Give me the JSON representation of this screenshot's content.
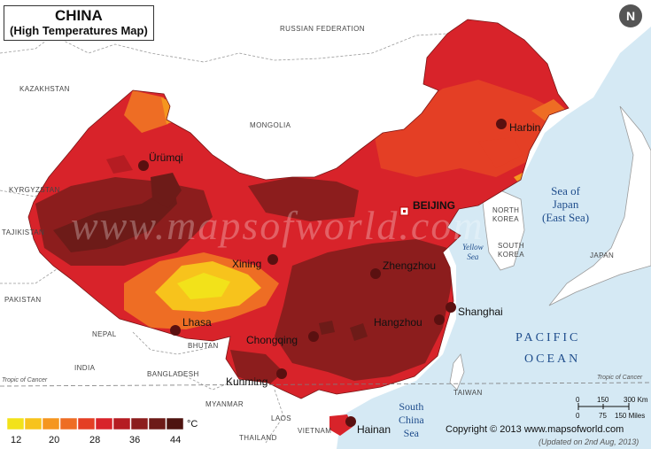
{
  "title": {
    "main": "CHINA",
    "sub": "(High Temperatures Map)"
  },
  "watermark": "www.mapsofworld.com",
  "capital": "BEIJING",
  "cities": [
    "Harbin",
    "Ürümqi",
    "Xining",
    "Zhengzhou",
    "Lhasa",
    "Shanghai",
    "Hangzhou",
    "Chongqing",
    "Kunming",
    "Hainan"
  ],
  "countries": [
    "RUSSIAN FEDERATION",
    "KAZAKHSTAN",
    "MONGOLIA",
    "KYRGYZSTAN",
    "TAJIKISTAN",
    "PAKISTAN",
    "NEPAL",
    "BHUTAN",
    "INDIA",
    "BANGLADESH",
    "MYANMAR",
    "LAOS",
    "THAILAND",
    "VIETNAM",
    "NORTH KOREA",
    "SOUTH KOREA",
    "JAPAN",
    "TAIWAN"
  ],
  "seas": {
    "japan": [
      "Sea of",
      "Japan",
      "(East Sea)"
    ],
    "yellow": [
      "Yellow",
      "Sea"
    ],
    "south_china": [
      "South",
      "China",
      "Sea"
    ],
    "pacific": [
      "PACIFIC",
      "OCEAN"
    ]
  },
  "tropic": "Tropic of Cancer",
  "legend": {
    "colors": [
      "#f2e21a",
      "#f7c31c",
      "#f5961f",
      "#ee6d24",
      "#e43f25",
      "#d8232a",
      "#b51c22",
      "#8c1d1d",
      "#6d1b18",
      "#4e1410"
    ],
    "labels": [
      "12",
      "20",
      "28",
      "36",
      "44"
    ],
    "unit": "°C"
  },
  "scale": {
    "km": [
      "0",
      "150",
      "300 Km"
    ],
    "miles": [
      "0",
      "75",
      "150 Miles"
    ]
  },
  "copyright": "Copyright © 2013 www.mapsofworld.com",
  "updated": "(Updated on 2nd Aug, 2013)",
  "compass": "N",
  "colors": {
    "sea": "#d5e9f4",
    "land": "#ffffff",
    "border": "#9a9a9a"
  }
}
